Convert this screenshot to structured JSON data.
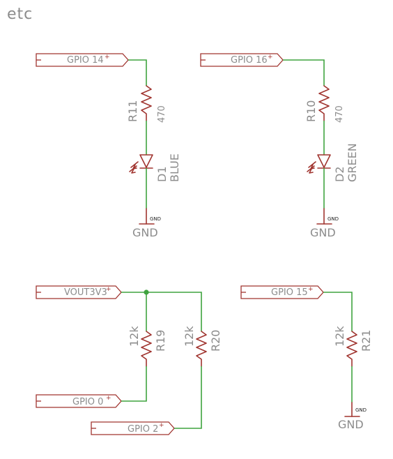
{
  "title": "etc",
  "colors": {
    "wire": "#3fa33f",
    "part": "#a0342f",
    "text": "#8c8c8c"
  },
  "ports": {
    "gpio14": "GPIO 14",
    "gpio16": "GPIO 16",
    "vout3v3": "VOUT3V3",
    "gpio15": "GPIO 15",
    "gpio0": "GPIO 0",
    "gpio2": "GPIO 2"
  },
  "resistors": {
    "r11": {
      "name": "R11",
      "value": "470"
    },
    "r10": {
      "name": "R10",
      "value": "470"
    },
    "r19": {
      "name": "R19",
      "value": "12k"
    },
    "r20": {
      "name": "R20",
      "value": "12k"
    },
    "r21": {
      "name": "R21",
      "value": "12k"
    }
  },
  "leds": {
    "d1": {
      "name": "D1",
      "value": "BLUE"
    },
    "d2": {
      "name": "D2",
      "value": "GREEN"
    }
  },
  "ground": {
    "label": "GND",
    "pin_label": "GND"
  },
  "plus_sign": "+"
}
